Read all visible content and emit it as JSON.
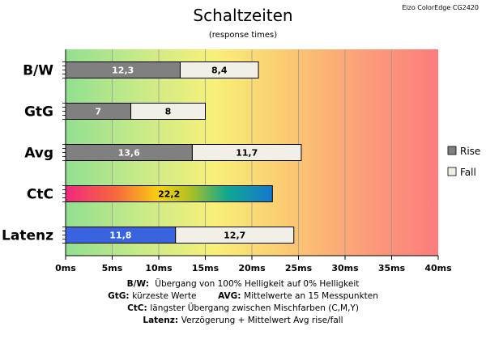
{
  "chart_data": {
    "type": "bar",
    "orientation": "horizontal",
    "stacked": true,
    "title": "Schaltzeiten",
    "subtitle": "(response times)",
    "brand": "Eizo ColorEdge CG2420",
    "categories": [
      "B/W",
      "GtG",
      "Avg",
      "CtC",
      "Latenz"
    ],
    "series": [
      {
        "name": "Rise",
        "color": "#808080",
        "values": [
          12.3,
          7,
          13.6,
          22.2,
          11.8
        ],
        "labels": [
          "12,3",
          "7",
          "13,6",
          "22,2",
          "11,8"
        ]
      },
      {
        "name": "Fall",
        "color": "#f2f0e6",
        "values": [
          8.4,
          8,
          11.7,
          null,
          12.7
        ],
        "labels": [
          "8,4",
          "8",
          "11,7",
          "",
          "12,7"
        ]
      }
    ],
    "special_fills": {
      "CtC": "rainbow-gradient",
      "Latenz": "#3a63e0"
    },
    "xlim": [
      0,
      40
    ],
    "xticks": [
      0,
      5,
      10,
      15,
      20,
      25,
      30,
      35,
      40
    ],
    "xtick_labels": [
      "0ms",
      "5ms",
      "10ms",
      "15ms",
      "20ms",
      "25ms",
      "30ms",
      "35ms",
      "40ms"
    ],
    "grid": true,
    "legend_position": "right",
    "background": "green-to-red-gradient"
  },
  "notes": [
    {
      "key": "B/W",
      "text": "Übergang von 100% Helligkeit auf 0% Helligkeit"
    },
    {
      "key": "GtG",
      "text": "kürzeste Werte",
      "key2": "AVG",
      "text2": "Mittelwerte an 15 Messpunkten"
    },
    {
      "key": "CtC",
      "text": "längster Übergang zwischen Mischfarben (C,M,Y)"
    },
    {
      "key": "Latenz",
      "text": "Verzögerung + Mittelwert Avg rise/fall"
    }
  ]
}
